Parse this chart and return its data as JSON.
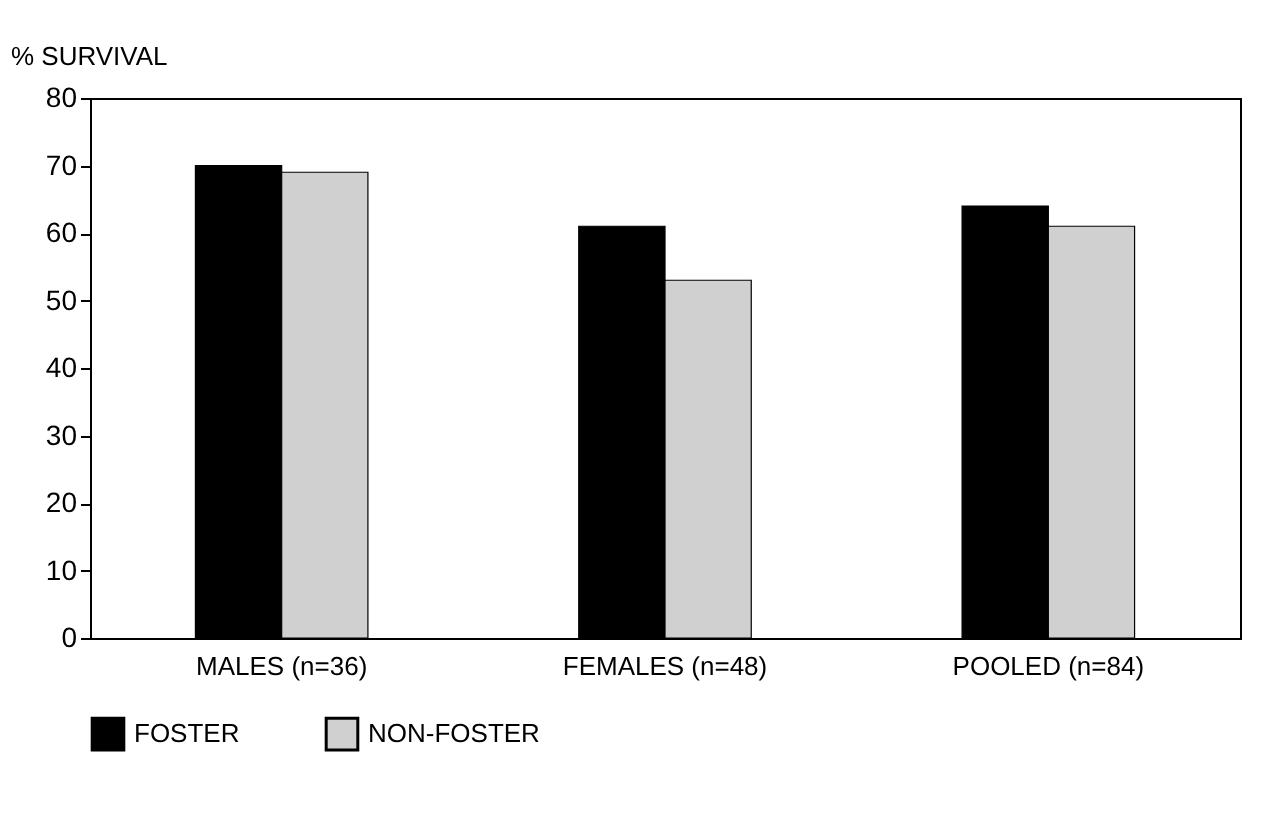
{
  "chart_data": {
    "type": "bar",
    "ylabel": "% SURVIVAL",
    "categories": [
      "MALES (n=36)",
      "FEMALES (n=48)",
      "POOLED (n=84)"
    ],
    "series": [
      {
        "name": "FOSTER",
        "color": "#000000",
        "values": [
          70,
          61,
          64
        ]
      },
      {
        "name": "NON-FOSTER",
        "color": "#d0d0d0",
        "values": [
          69,
          53,
          61
        ]
      }
    ],
    "ylim": [
      0,
      80
    ],
    "yticks": [
      0,
      10,
      20,
      30,
      40,
      50,
      60,
      70,
      80
    ],
    "grid": false,
    "legend": "bottom"
  }
}
